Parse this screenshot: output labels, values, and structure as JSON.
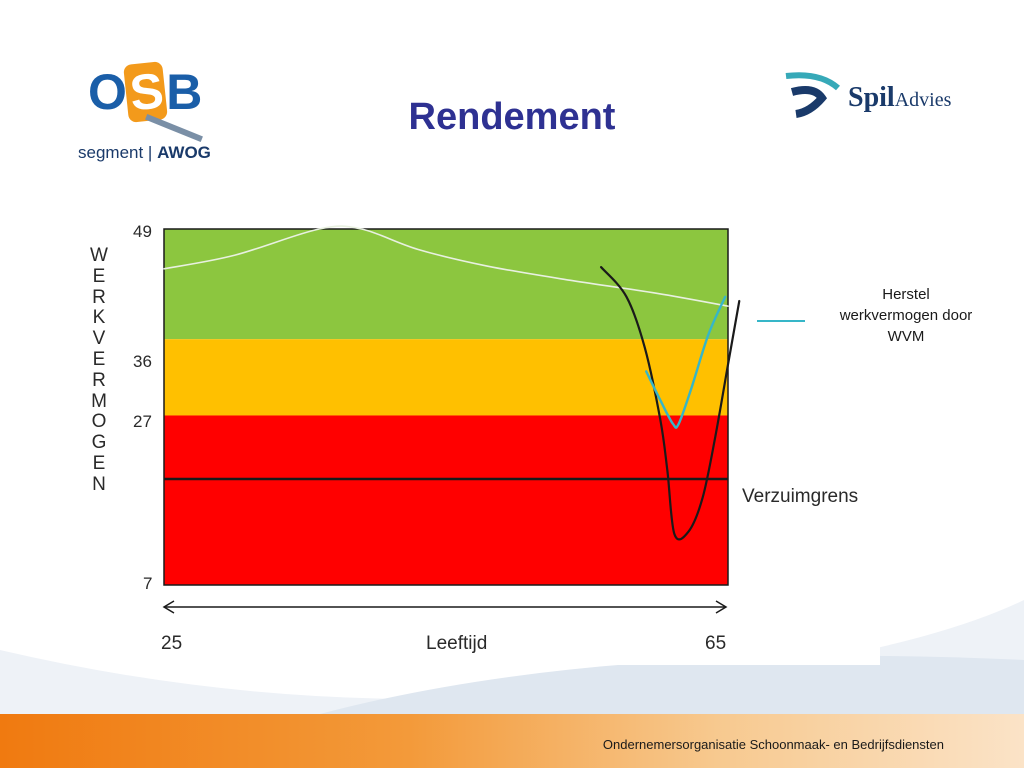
{
  "slide": {
    "title": "Rendement",
    "footer": "Ondernemersorganisatie Schoonmaak- en Bedrijfsdiensten"
  },
  "logos": {
    "osb": {
      "letters_o": "O",
      "letters_s": "S",
      "letters_b": "B",
      "segment": "segment",
      "awog": "AWOG"
    },
    "spil": {
      "main": "Spil",
      "sub": "Advies"
    }
  },
  "colors": {
    "zone_green": "#8cc63f",
    "zone_orange": "#ffc000",
    "zone_red": "#ff0000",
    "curve_main": "#1a1a1a",
    "curve_recovery": "#36b6c8",
    "curve_norm": "#e8f0e0",
    "title": "#2e3192"
  },
  "chart_data": {
    "type": "line",
    "ylabel": "WERKVERMOGEN",
    "xlabel": "Leeftijd",
    "x_range": [
      25,
      65
    ],
    "y_ticks": [
      49,
      36,
      27,
      7
    ],
    "x_ticks": [
      25,
      65
    ],
    "y_range": [
      7,
      49
    ],
    "zones": [
      {
        "from": 36,
        "to": 49,
        "color": "#8cc63f"
      },
      {
        "from": 27,
        "to": 36,
        "color": "#ffc000"
      },
      {
        "from": 7,
        "to": 27,
        "color": "#ff0000"
      }
    ],
    "reference_line": {
      "label": "Verzuimgrens",
      "y": 19.5
    },
    "series": [
      {
        "style": "normal-curve",
        "x": [
          25,
          30,
          36,
          39,
          43,
          48,
          54,
          60,
          65
        ],
        "y": [
          44.3,
          45.9,
          49,
          49,
          46.6,
          44.6,
          42.9,
          41.4,
          39.9
        ]
      },
      {
        "style": "main-curve",
        "x": [
          56,
          57.8,
          59.1,
          60.2,
          60.7,
          61.2,
          62.2,
          63.2,
          64.1,
          65.0,
          65.8
        ],
        "y": [
          44.5,
          41,
          35,
          26.5,
          20.5,
          13,
          13.3,
          17.3,
          24.5,
          33,
          40.5
        ]
      },
      {
        "name": "Herstel werkvermogen door WVM",
        "style": "recovery-curve",
        "x": [
          59.2,
          60.2,
          61.1,
          61.5,
          62.4,
          63.6,
          64.8
        ],
        "y": [
          32.2,
          28.8,
          26,
          26,
          30.2,
          36.5,
          41
        ]
      }
    ],
    "legend": {
      "entries": [
        "Herstel werkvermogen door WVM"
      ],
      "placement": "right"
    }
  }
}
